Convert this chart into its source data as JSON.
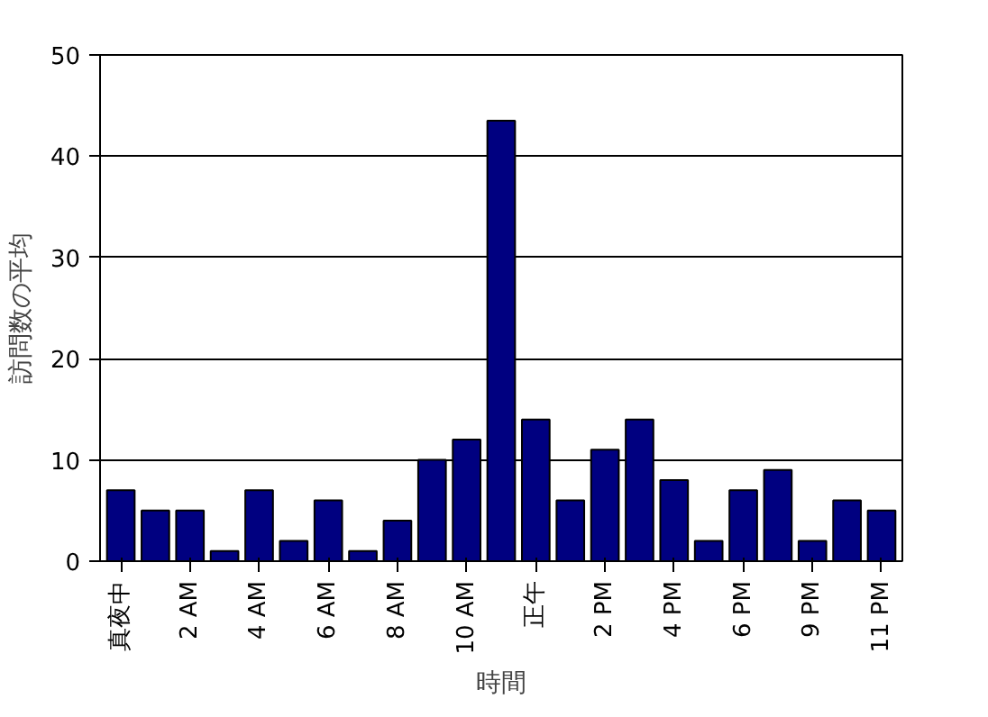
{
  "chart_data": {
    "type": "bar",
    "xlabel": "時間",
    "ylabel": "訪問数の平均",
    "categories": [
      "真夜中",
      null,
      "2 AM",
      null,
      "4 AM",
      null,
      "6 AM",
      null,
      "8 AM",
      null,
      "10 AM",
      null,
      "正午",
      null,
      "2 PM",
      null,
      "4 PM",
      null,
      "6 PM",
      null,
      "9 PM",
      null,
      "11 PM"
    ],
    "values": [
      7,
      5,
      5,
      1,
      7,
      2,
      6,
      1,
      4,
      10,
      12,
      43.5,
      14,
      6,
      11,
      14,
      8,
      2,
      7,
      9,
      2,
      6,
      5
    ],
    "color": "#000080",
    "ylim": [
      0,
      50
    ],
    "yticks": [
      0,
      10,
      20,
      30,
      40,
      50
    ],
    "grid": "y"
  }
}
